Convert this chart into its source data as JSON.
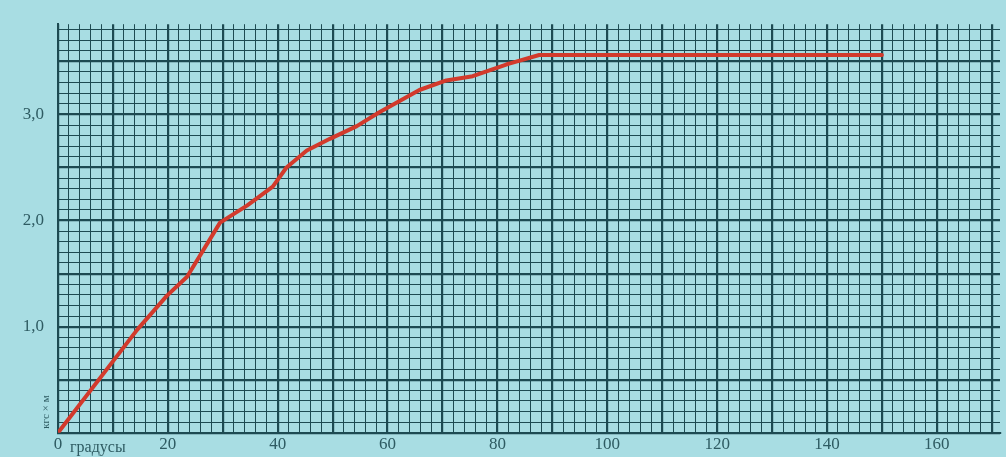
{
  "chart_data": {
    "type": "line",
    "xlabel": "градусы",
    "ylabel": "кгс × м",
    "series": [
      {
        "color": "#d23a2c",
        "x": [
          0,
          14.4,
          19.8,
          23.5,
          29.5,
          34.4,
          39.1,
          41.6,
          45.3,
          49.5,
          54.4,
          58.5,
          65.8,
          70.7,
          75.5,
          81.6,
          87.6,
          90,
          150
        ],
        "values": [
          0,
          0.97,
          1.29,
          1.47,
          1.98,
          2.14,
          2.32,
          2.5,
          2.66,
          2.77,
          2.89,
          3.02,
          3.23,
          3.32,
          3.36,
          3.47,
          3.56,
          3.56,
          3.56
        ]
      }
    ],
    "xlim": [
      0,
      171.5
    ],
    "ylim": [
      0,
      3.85
    ],
    "xticks": [
      0,
      {
        "value": 2,
        "label": null
      },
      {
        "value": 4,
        "label": null
      },
      {
        "value": 6,
        "label": null
      },
      {
        "value": 8,
        "label": null
      },
      {
        "value": 10,
        "label": null
      },
      {
        "value": 12,
        "label": null
      },
      {
        "value": 14,
        "label": null
      },
      {
        "value": 16,
        "label": null
      },
      {
        "value": 18,
        "label": null
      },
      20,
      {
        "value": 22,
        "label": null
      },
      {
        "value": 24,
        "label": null
      },
      {
        "value": 26,
        "label": null
      },
      {
        "value": 28,
        "label": null
      },
      {
        "value": 30,
        "label": null
      },
      {
        "value": 32,
        "label": null
      },
      {
        "value": 34,
        "label": null
      },
      {
        "value": 36,
        "label": null
      },
      {
        "value": 38,
        "label": null
      },
      40,
      {
        "value": 42,
        "label": null
      },
      {
        "value": 44,
        "label": null
      },
      {
        "value": 46,
        "label": null
      },
      {
        "value": 48,
        "label": null
      },
      {
        "value": 50,
        "label": null
      },
      {
        "value": 52,
        "label": null
      },
      {
        "value": 54,
        "label": null
      },
      {
        "value": 56,
        "label": null
      },
      {
        "value": 58,
        "label": null
      },
      60,
      {
        "value": 62,
        "label": null
      },
      {
        "value": 64,
        "label": null
      },
      {
        "value": 66,
        "label": null
      },
      {
        "value": 68,
        "label": null
      },
      {
        "value": 70,
        "label": null
      },
      {
        "value": 72,
        "label": null
      },
      {
        "value": 74,
        "label": null
      },
      {
        "value": 76,
        "label": null
      },
      {
        "value": 78,
        "label": null
      },
      80,
      {
        "value": 82,
        "label": null
      },
      {
        "value": 84,
        "label": null
      },
      {
        "value": 86,
        "label": null
      },
      {
        "value": 88,
        "label": null
      },
      {
        "value": 90,
        "label": null
      },
      {
        "value": 92,
        "label": null
      },
      {
        "value": 94,
        "label": null
      },
      {
        "value": 96,
        "label": null
      },
      {
        "value": 98,
        "label": null
      },
      100,
      {
        "value": 102,
        "label": null
      },
      {
        "value": 104,
        "label": null
      },
      {
        "value": 106,
        "label": null
      },
      {
        "value": 108,
        "label": null
      },
      {
        "value": 110,
        "label": null
      },
      {
        "value": 112,
        "label": null
      },
      {
        "value": 114,
        "label": null
      },
      {
        "value": 116,
        "label": null
      },
      {
        "value": 118,
        "label": null
      },
      120,
      {
        "value": 122,
        "label": null
      },
      {
        "value": 124,
        "label": null
      },
      {
        "value": 126,
        "label": null
      },
      {
        "value": 128,
        "label": null
      },
      {
        "value": 130,
        "label": null
      },
      {
        "value": 132,
        "label": null
      },
      {
        "value": 134,
        "label": null
      },
      {
        "value": 136,
        "label": null
      },
      {
        "value": 138,
        "label": null
      },
      140,
      {
        "value": 142,
        "label": null
      },
      {
        "value": 144,
        "label": null
      },
      {
        "value": 146,
        "label": null
      },
      {
        "value": 148,
        "label": null
      },
      {
        "value": 150,
        "label": null
      },
      {
        "value": 152,
        "label": null
      },
      {
        "value": 154,
        "label": null
      },
      {
        "value": 156,
        "label": null
      },
      {
        "value": 158,
        "label": null
      },
      160,
      {
        "value": 162,
        "label": null
      },
      {
        "value": 164,
        "label": null
      },
      {
        "value": 166,
        "label": null
      },
      {
        "value": 168,
        "label": null
      },
      {
        "value": 170,
        "label": null
      }
    ],
    "yticks": [
      {
        "value": 0,
        "label": null
      },
      {
        "value": 0.1,
        "label": null
      },
      {
        "value": 0.2,
        "label": null
      },
      {
        "value": 0.3,
        "label": null
      },
      {
        "value": 0.4,
        "label": null
      },
      {
        "value": 0.5,
        "label": null
      },
      {
        "value": 0.6,
        "label": null
      },
      {
        "value": 0.7,
        "label": null
      },
      {
        "value": 0.8,
        "label": null
      },
      {
        "value": 0.9,
        "label": null
      },
      {
        "value": 1,
        "label": "1,0"
      },
      {
        "value": 1.1,
        "label": null
      },
      {
        "value": 1.2,
        "label": null
      },
      {
        "value": 1.3,
        "label": null
      },
      {
        "value": 1.4,
        "label": null
      },
      {
        "value": 1.5,
        "label": null
      },
      {
        "value": 1.6,
        "label": null
      },
      {
        "value": 1.7,
        "label": null
      },
      {
        "value": 1.8,
        "label": null
      },
      {
        "value": 1.9,
        "label": null
      },
      {
        "value": 2,
        "label": "2,0"
      },
      {
        "value": 2.1,
        "label": null
      },
      {
        "value": 2.2,
        "label": null
      },
      {
        "value": 2.3,
        "label": null
      },
      {
        "value": 2.4,
        "label": null
      },
      {
        "value": 2.5,
        "label": null
      },
      {
        "value": 2.6,
        "label": null
      },
      {
        "value": 2.7,
        "label": null
      },
      {
        "value": 2.8,
        "label": null
      },
      {
        "value": 2.9,
        "label": null
      },
      {
        "value": 3,
        "label": "3,0"
      },
      {
        "value": 3.1,
        "label": null
      },
      {
        "value": 3.2,
        "label": null
      },
      {
        "value": 3.3,
        "label": null
      },
      {
        "value": 3.4,
        "label": null
      },
      {
        "value": 3.5,
        "label": null
      },
      {
        "value": 3.6,
        "label": null
      },
      {
        "value": 3.7,
        "label": null
      },
      {
        "value": 3.8,
        "label": null
      }
    ],
    "grid": true,
    "marker": "none",
    "line_style": "solid"
  }
}
